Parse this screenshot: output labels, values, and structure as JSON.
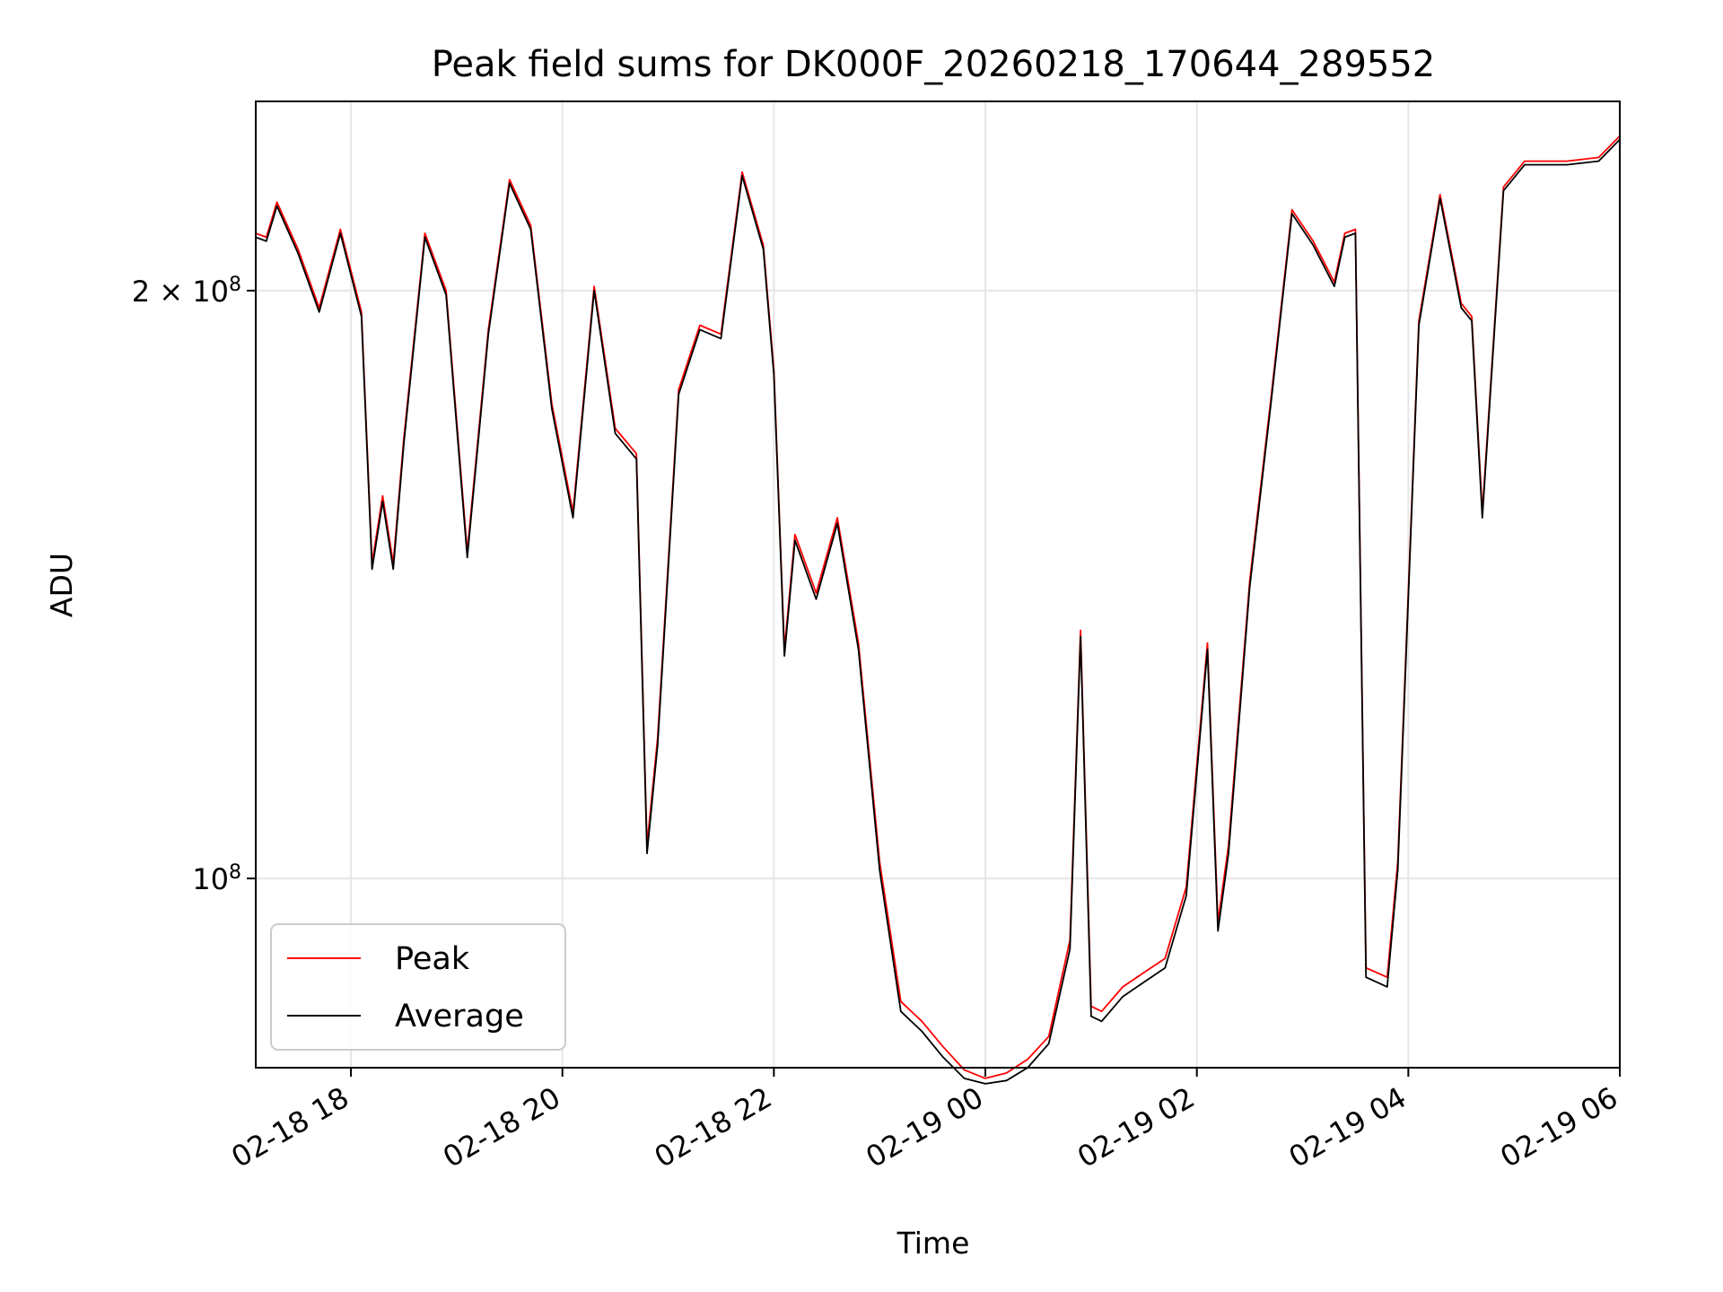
{
  "chart_data": {
    "type": "line",
    "title": "Peak field sums for DK000F_20260218_170644_289552",
    "xlabel": "Time",
    "ylabel": "ADU",
    "yscale": "log",
    "xlim": [
      "2026-02-18 17:06",
      "2026-02-19 06:00"
    ],
    "ylim": [
      80000000,
      250000000
    ],
    "grid": true,
    "legend_position": "lower-left",
    "x_ticks": [
      {
        "value": "2026-02-18 18:00",
        "label": "02-18 18"
      },
      {
        "value": "2026-02-18 20:00",
        "label": "02-18 20"
      },
      {
        "value": "2026-02-18 22:00",
        "label": "02-18 22"
      },
      {
        "value": "2026-02-19 00:00",
        "label": "02-19 00"
      },
      {
        "value": "2026-02-19 02:00",
        "label": "02-19 02"
      },
      {
        "value": "2026-02-19 04:00",
        "label": "02-19 04"
      },
      {
        "value": "2026-02-19 06:00",
        "label": "02-19 06"
      }
    ],
    "y_ticks": [
      {
        "value": 100000000,
        "base": "10",
        "exp": "8",
        "prefix": ""
      },
      {
        "value": 200000000,
        "base": "10",
        "exp": "8",
        "prefix": "2 × "
      }
    ],
    "series": [
      {
        "name": "Peak",
        "color": "#ff0000",
        "x": [
          "2026-02-18 17:06",
          "2026-02-18 17:12",
          "2026-02-18 17:18",
          "2026-02-18 17:30",
          "2026-02-18 17:42",
          "2026-02-18 17:54",
          "2026-02-18 18:06",
          "2026-02-18 18:12",
          "2026-02-18 18:18",
          "2026-02-18 18:24",
          "2026-02-18 18:30",
          "2026-02-18 18:42",
          "2026-02-18 18:54",
          "2026-02-18 19:06",
          "2026-02-18 19:18",
          "2026-02-18 19:30",
          "2026-02-18 19:42",
          "2026-02-18 19:54",
          "2026-02-18 20:06",
          "2026-02-18 20:18",
          "2026-02-18 20:30",
          "2026-02-18 20:42",
          "2026-02-18 20:48",
          "2026-02-18 20:54",
          "2026-02-18 21:06",
          "2026-02-18 21:18",
          "2026-02-18 21:30",
          "2026-02-18 21:42",
          "2026-02-18 21:54",
          "2026-02-18 22:00",
          "2026-02-18 22:06",
          "2026-02-18 22:12",
          "2026-02-18 22:24",
          "2026-02-18 22:36",
          "2026-02-18 22:48",
          "2026-02-18 23:00",
          "2026-02-18 23:12",
          "2026-02-18 23:24",
          "2026-02-18 23:36",
          "2026-02-18 23:48",
          "2026-02-19 00:00",
          "2026-02-19 00:12",
          "2026-02-19 00:24",
          "2026-02-19 00:36",
          "2026-02-19 00:48",
          "2026-02-19 00:54",
          "2026-02-19 01:00",
          "2026-02-19 01:06",
          "2026-02-19 01:18",
          "2026-02-19 01:30",
          "2026-02-19 01:42",
          "2026-02-19 01:54",
          "2026-02-19 02:06",
          "2026-02-19 02:12",
          "2026-02-19 02:18",
          "2026-02-19 02:30",
          "2026-02-19 02:42",
          "2026-02-19 02:54",
          "2026-02-19 03:06",
          "2026-02-19 03:18",
          "2026-02-19 03:24",
          "2026-02-19 03:30",
          "2026-02-19 03:36",
          "2026-02-19 03:48",
          "2026-02-19 03:54",
          "2026-02-19 04:06",
          "2026-02-19 04:18",
          "2026-02-19 04:30",
          "2026-02-19 04:36",
          "2026-02-19 04:42",
          "2026-02-19 04:54",
          "2026-02-19 05:06",
          "2026-02-19 05:30",
          "2026-02-19 05:48",
          "2026-02-19 06:00"
        ],
        "values": [
          214000000,
          213000000,
          222000000,
          210000000,
          196000000,
          215000000,
          195000000,
          145000000,
          157000000,
          145000000,
          168000000,
          214000000,
          200000000,
          147000000,
          191000000,
          228000000,
          216000000,
          175000000,
          154000000,
          201000000,
          170000000,
          165000000,
          104000000,
          118000000,
          178000000,
          192000000,
          190000000,
          230000000,
          211000000,
          182000000,
          131000000,
          150000000,
          140000000,
          153000000,
          132000000,
          102000000,
          86500000,
          84500000,
          82000000,
          79800000,
          79000000,
          79500000,
          80800000,
          83000000,
          93000000,
          134000000,
          86000000,
          85500000,
          88000000,
          89500000,
          91000000,
          99000000,
          132000000,
          95000000,
          104000000,
          142000000,
          176000000,
          220000000,
          212000000,
          202000000,
          214000000,
          215000000,
          90000000,
          89000000,
          102000000,
          193000000,
          224000000,
          197000000,
          194000000,
          154000000,
          226000000,
          233000000,
          233000000,
          234000000,
          240000000
        ]
      },
      {
        "name": "Average",
        "color": "#000000",
        "x": [
          "2026-02-18 17:06",
          "2026-02-18 17:12",
          "2026-02-18 17:18",
          "2026-02-18 17:30",
          "2026-02-18 17:42",
          "2026-02-18 17:54",
          "2026-02-18 18:06",
          "2026-02-18 18:12",
          "2026-02-18 18:18",
          "2026-02-18 18:24",
          "2026-02-18 18:30",
          "2026-02-18 18:42",
          "2026-02-18 18:54",
          "2026-02-18 19:06",
          "2026-02-18 19:18",
          "2026-02-18 19:30",
          "2026-02-18 19:42",
          "2026-02-18 19:54",
          "2026-02-18 20:06",
          "2026-02-18 20:18",
          "2026-02-18 20:30",
          "2026-02-18 20:42",
          "2026-02-18 20:48",
          "2026-02-18 20:54",
          "2026-02-18 21:06",
          "2026-02-18 21:18",
          "2026-02-18 21:30",
          "2026-02-18 21:42",
          "2026-02-18 21:54",
          "2026-02-18 22:00",
          "2026-02-18 22:06",
          "2026-02-18 22:12",
          "2026-02-18 22:24",
          "2026-02-18 22:36",
          "2026-02-18 22:48",
          "2026-02-18 23:00",
          "2026-02-18 23:12",
          "2026-02-18 23:24",
          "2026-02-18 23:36",
          "2026-02-18 23:48",
          "2026-02-19 00:00",
          "2026-02-19 00:12",
          "2026-02-19 00:24",
          "2026-02-19 00:36",
          "2026-02-19 00:48",
          "2026-02-19 00:54",
          "2026-02-19 01:00",
          "2026-02-19 01:06",
          "2026-02-19 01:18",
          "2026-02-19 01:30",
          "2026-02-19 01:42",
          "2026-02-19 01:54",
          "2026-02-19 02:06",
          "2026-02-19 02:12",
          "2026-02-19 02:18",
          "2026-02-19 02:30",
          "2026-02-19 02:42",
          "2026-02-19 02:54",
          "2026-02-19 03:06",
          "2026-02-19 03:18",
          "2026-02-19 03:24",
          "2026-02-19 03:30",
          "2026-02-19 03:36",
          "2026-02-19 03:48",
          "2026-02-19 03:54",
          "2026-02-19 04:06",
          "2026-02-19 04:18",
          "2026-02-19 04:30",
          "2026-02-19 04:36",
          "2026-02-19 04:42",
          "2026-02-19 04:54",
          "2026-02-19 05:06",
          "2026-02-19 05:30",
          "2026-02-19 05:48",
          "2026-02-19 06:00"
        ],
        "values": [
          213000000,
          212000000,
          221000000,
          209000000,
          195000000,
          214000000,
          194000000,
          144000000,
          156000000,
          144000000,
          167000000,
          213000000,
          199000000,
          146000000,
          190000000,
          227000000,
          215000000,
          174000000,
          153000000,
          200000000,
          169000000,
          164000000,
          103000000,
          117000000,
          177000000,
          191000000,
          189000000,
          229000000,
          210000000,
          181000000,
          130000000,
          149000000,
          139000000,
          152000000,
          131000000,
          101000000,
          85500000,
          83500000,
          81000000,
          79000000,
          78500000,
          78800000,
          80000000,
          82300000,
          92000000,
          133000000,
          85000000,
          84500000,
          87000000,
          88500000,
          90000000,
          98000000,
          131000000,
          94000000,
          103000000,
          141000000,
          175000000,
          219000000,
          211000000,
          201000000,
          213000000,
          214000000,
          89000000,
          88000000,
          101000000,
          192000000,
          223000000,
          196000000,
          193000000,
          153000000,
          225000000,
          232000000,
          232000000,
          233000000,
          239000000
        ]
      }
    ]
  }
}
